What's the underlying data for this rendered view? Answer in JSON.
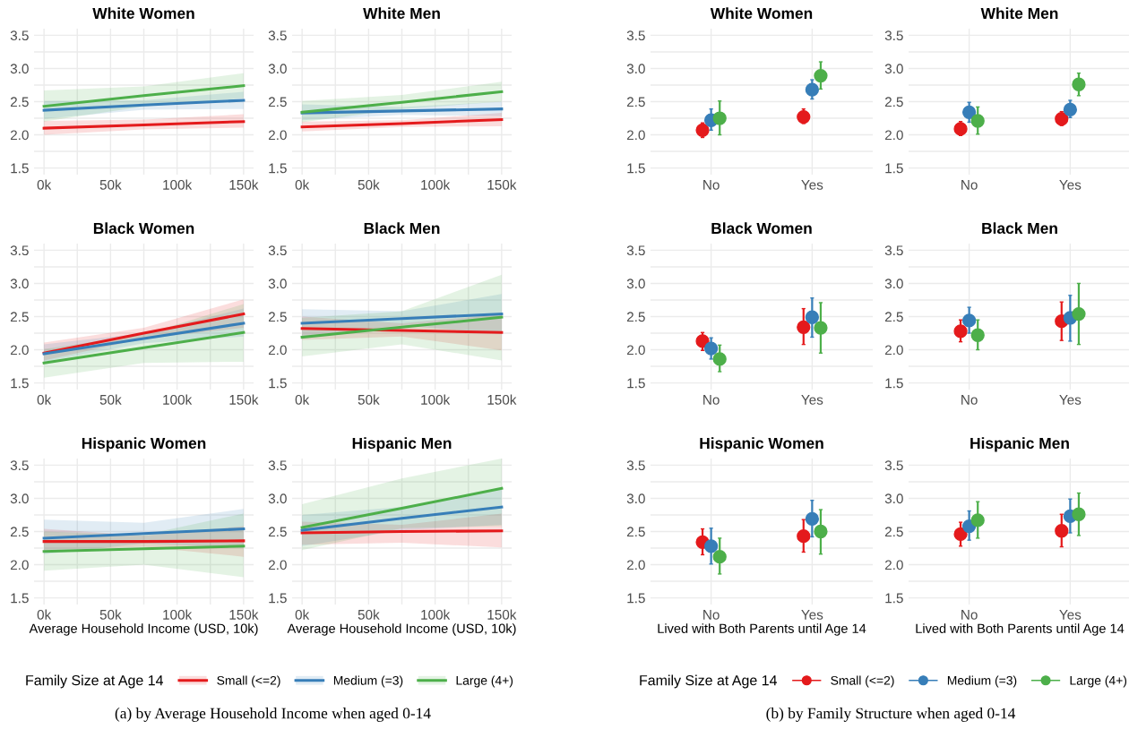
{
  "chart_data": [
    {
      "type": "line",
      "title": "White Women",
      "x": [
        0,
        75000,
        150000
      ],
      "xlim": [
        -7500,
        157500
      ],
      "ylim": [
        1.4,
        3.6
      ],
      "xticks": [
        {
          "value": 0,
          "label": "0k"
        },
        {
          "value": 25000,
          "label": null
        },
        {
          "value": 50000,
          "label": "50k"
        },
        {
          "value": 75000,
          "label": null
        },
        {
          "value": 100000,
          "label": "100k"
        },
        {
          "value": 125000,
          "label": null
        },
        {
          "value": 150000,
          "label": "150k"
        }
      ],
      "yticks": [
        1.5,
        {
          "value": 1.75,
          "label": null
        },
        {
          "value": 2,
          "label": "2.0"
        },
        {
          "value": 2.25,
          "label": null
        },
        2.5,
        {
          "value": 2.75,
          "label": null
        },
        {
          "value": 3,
          "label": "3.0"
        },
        {
          "value": 3.25,
          "label": null
        },
        3.5
      ],
      "grid": true,
      "series": [
        {
          "color": "#e41a1c",
          "values": [
            2.1,
            2.15,
            2.2
          ],
          "lower": [
            2.0,
            2.08,
            2.11
          ],
          "upper": [
            2.21,
            2.23,
            2.31
          ]
        },
        {
          "color": "#377eb8",
          "values": [
            2.37,
            2.45,
            2.52
          ],
          "lower": [
            2.24,
            2.38,
            2.39
          ],
          "upper": [
            2.51,
            2.52,
            2.65
          ]
        },
        {
          "color": "#4daf4a",
          "values": [
            2.43,
            2.59,
            2.74
          ],
          "lower": [
            2.2,
            2.43,
            2.55
          ],
          "upper": [
            2.67,
            2.73,
            2.93
          ]
        }
      ]
    },
    {
      "type": "line",
      "title": "White Men",
      "x": [
        0,
        75000,
        150000
      ],
      "xlim": [
        -7500,
        157500
      ],
      "ylim": [
        1.4,
        3.6
      ],
      "xticks": [
        {
          "value": 0,
          "label": "0k"
        },
        {
          "value": 25000,
          "label": null
        },
        {
          "value": 50000,
          "label": "50k"
        },
        {
          "value": 75000,
          "label": null
        },
        {
          "value": 100000,
          "label": "100k"
        },
        {
          "value": 125000,
          "label": null
        },
        {
          "value": 150000,
          "label": "150k"
        }
      ],
      "yticks": [
        1.5,
        {
          "value": 1.75,
          "label": null
        },
        {
          "value": 2,
          "label": "2.0"
        },
        {
          "value": 2.25,
          "label": null
        },
        2.5,
        {
          "value": 2.75,
          "label": null
        },
        {
          "value": 3,
          "label": "3.0"
        },
        {
          "value": 3.25,
          "label": null
        },
        3.5
      ],
      "grid": true,
      "series": [
        {
          "color": "#e41a1c",
          "values": [
            2.12,
            2.17,
            2.23
          ],
          "lower": [
            2.05,
            2.12,
            2.13
          ],
          "upper": [
            2.2,
            2.22,
            2.33
          ]
        },
        {
          "color": "#377eb8",
          "values": [
            2.33,
            2.36,
            2.39
          ],
          "lower": [
            2.22,
            2.3,
            2.28
          ],
          "upper": [
            2.46,
            2.42,
            2.5
          ]
        },
        {
          "color": "#4daf4a",
          "values": [
            2.34,
            2.49,
            2.65
          ],
          "lower": [
            2.19,
            2.39,
            2.5
          ],
          "upper": [
            2.51,
            2.6,
            2.8
          ]
        }
      ]
    },
    {
      "type": "line",
      "title": "Black Women",
      "x": [
        0,
        75000,
        150000
      ],
      "xlim": [
        -7500,
        157500
      ],
      "ylim": [
        1.4,
        3.6
      ],
      "xticks": [
        {
          "value": 0,
          "label": "0k"
        },
        {
          "value": 25000,
          "label": null
        },
        {
          "value": 50000,
          "label": "50k"
        },
        {
          "value": 75000,
          "label": null
        },
        {
          "value": 100000,
          "label": "100k"
        },
        {
          "value": 125000,
          "label": null
        },
        {
          "value": 150000,
          "label": "150k"
        }
      ],
      "yticks": [
        1.5,
        {
          "value": 1.75,
          "label": null
        },
        {
          "value": 2,
          "label": "2.0"
        },
        {
          "value": 2.25,
          "label": null
        },
        2.5,
        {
          "value": 2.75,
          "label": null
        },
        {
          "value": 3,
          "label": "3.0"
        },
        {
          "value": 3.25,
          "label": null
        },
        3.5
      ],
      "grid": true,
      "series": [
        {
          "color": "#e41a1c",
          "values": [
            1.95,
            2.25,
            2.54
          ],
          "lower": [
            1.84,
            2.17,
            2.33
          ],
          "upper": [
            2.11,
            2.33,
            2.76
          ]
        },
        {
          "color": "#377eb8",
          "values": [
            1.94,
            2.17,
            2.4
          ],
          "lower": [
            1.82,
            2.1,
            2.2
          ],
          "upper": [
            2.08,
            2.25,
            2.62
          ]
        },
        {
          "color": "#4daf4a",
          "values": [
            1.8,
            2.03,
            2.26
          ],
          "lower": [
            1.58,
            1.8,
            1.82
          ],
          "upper": [
            2.01,
            2.23,
            2.69
          ]
        }
      ]
    },
    {
      "type": "line",
      "title": "Black Men",
      "x": [
        0,
        75000,
        150000
      ],
      "xlim": [
        -7500,
        157500
      ],
      "ylim": [
        1.4,
        3.6
      ],
      "xticks": [
        {
          "value": 0,
          "label": "0k"
        },
        {
          "value": 25000,
          "label": null
        },
        {
          "value": 50000,
          "label": "50k"
        },
        {
          "value": 75000,
          "label": null
        },
        {
          "value": 100000,
          "label": "100k"
        },
        {
          "value": 125000,
          "label": null
        },
        {
          "value": 150000,
          "label": "150k"
        }
      ],
      "yticks": [
        1.5,
        {
          "value": 1.75,
          "label": null
        },
        {
          "value": 2,
          "label": "2.0"
        },
        {
          "value": 2.25,
          "label": null
        },
        2.5,
        {
          "value": 2.75,
          "label": null
        },
        {
          "value": 3,
          "label": "3.0"
        },
        {
          "value": 3.25,
          "label": null
        },
        3.5
      ],
      "grid": true,
      "series": [
        {
          "color": "#e41a1c",
          "values": [
            2.32,
            2.29,
            2.26
          ],
          "lower": [
            2.15,
            2.2,
            1.99
          ],
          "upper": [
            2.5,
            2.4,
            2.53
          ]
        },
        {
          "color": "#377eb8",
          "values": [
            2.4,
            2.47,
            2.54
          ],
          "lower": [
            2.2,
            2.37,
            2.24
          ],
          "upper": [
            2.61,
            2.58,
            2.84
          ]
        },
        {
          "color": "#4daf4a",
          "values": [
            2.19,
            2.34,
            2.49
          ],
          "lower": [
            1.9,
            2.08,
            1.84
          ],
          "upper": [
            2.48,
            2.58,
            3.13
          ]
        }
      ]
    },
    {
      "type": "line",
      "title": "Hispanic Women",
      "xlabel": "Average Household Income (USD, 10k)",
      "x": [
        0,
        75000,
        150000
      ],
      "xlim": [
        -7500,
        157500
      ],
      "ylim": [
        1.4,
        3.6
      ],
      "xticks": [
        {
          "value": 0,
          "label": "0k"
        },
        {
          "value": 25000,
          "label": null
        },
        {
          "value": 50000,
          "label": "50k"
        },
        {
          "value": 75000,
          "label": null
        },
        {
          "value": 100000,
          "label": "100k"
        },
        {
          "value": 125000,
          "label": null
        },
        {
          "value": 150000,
          "label": "150k"
        }
      ],
      "yticks": [
        1.5,
        {
          "value": 1.75,
          "label": null
        },
        {
          "value": 2,
          "label": "2.0"
        },
        {
          "value": 2.25,
          "label": null
        },
        2.5,
        {
          "value": 2.75,
          "label": null
        },
        {
          "value": 3,
          "label": "3.0"
        },
        {
          "value": 3.25,
          "label": null
        },
        3.5
      ],
      "grid": true,
      "series": [
        {
          "color": "#e41a1c",
          "values": [
            2.35,
            2.35,
            2.36
          ],
          "lower": [
            2.22,
            2.27,
            2.12
          ],
          "upper": [
            2.54,
            2.44,
            2.58
          ]
        },
        {
          "color": "#377eb8",
          "values": [
            2.4,
            2.47,
            2.54
          ],
          "lower": [
            2.16,
            2.32,
            2.25
          ],
          "upper": [
            2.68,
            2.63,
            2.84
          ]
        },
        {
          "color": "#4daf4a",
          "values": [
            2.2,
            2.24,
            2.28
          ],
          "lower": [
            1.91,
            2.0,
            1.81
          ],
          "upper": [
            2.5,
            2.45,
            2.77
          ]
        }
      ]
    },
    {
      "type": "line",
      "title": "Hispanic Men",
      "xlabel": "Average Household Income (USD, 10k)",
      "x": [
        0,
        75000,
        150000
      ],
      "xlim": [
        -7500,
        157500
      ],
      "ylim": [
        1.4,
        3.6
      ],
      "xticks": [
        {
          "value": 0,
          "label": "0k"
        },
        {
          "value": 25000,
          "label": null
        },
        {
          "value": 50000,
          "label": "50k"
        },
        {
          "value": 75000,
          "label": null
        },
        {
          "value": 100000,
          "label": "100k"
        },
        {
          "value": 125000,
          "label": null
        },
        {
          "value": 150000,
          "label": "150k"
        }
      ],
      "yticks": [
        1.5,
        {
          "value": 1.75,
          "label": null
        },
        {
          "value": 2,
          "label": "2.0"
        },
        {
          "value": 2.25,
          "label": null
        },
        2.5,
        {
          "value": 2.75,
          "label": null
        },
        {
          "value": 3,
          "label": "3.0"
        },
        {
          "value": 3.25,
          "label": null
        },
        3.5
      ],
      "grid": true,
      "legend": "bottom",
      "legend_title": "Family Size at Age 14",
      "annotations": [
        "(a) by Average Household Income when aged 0-14"
      ],
      "series": [
        {
          "name": "Small (<=2)",
          "color": "#e41a1c",
          "values": [
            2.48,
            2.5,
            2.51
          ],
          "lower": [
            2.3,
            2.33,
            2.26
          ],
          "upper": [
            2.65,
            2.6,
            2.77
          ]
        },
        {
          "name": "Medium (=3)",
          "color": "#377eb8",
          "values": [
            2.52,
            2.7,
            2.87
          ],
          "lower": [
            2.28,
            2.52,
            2.6
          ],
          "upper": [
            2.75,
            2.87,
            3.15
          ]
        },
        {
          "name": "Large (4+)",
          "color": "#4daf4a",
          "values": [
            2.56,
            2.85,
            3.15
          ],
          "lower": [
            2.22,
            2.55,
            2.58
          ],
          "upper": [
            2.91,
            3.3,
            3.6
          ]
        }
      ]
    },
    {
      "type": "scatter",
      "title": "White Women",
      "categories": [
        "No",
        "Yes"
      ],
      "ylim": [
        1.4,
        3.6
      ],
      "marker": "circle",
      "yticks": [
        1.5,
        {
          "value": 1.75,
          "label": null
        },
        {
          "value": 2,
          "label": "2.0"
        },
        {
          "value": 2.25,
          "label": null
        },
        2.5,
        {
          "value": 2.75,
          "label": null
        },
        {
          "value": 3,
          "label": "3.0"
        },
        {
          "value": 3.25,
          "label": null
        },
        3.5
      ],
      "grid": true,
      "series": [
        {
          "color": "#e41a1c",
          "values": [
            2.07,
            2.27
          ],
          "errors": [
            [
              1.96,
              2.18
            ],
            [
              2.17,
              2.39
            ]
          ]
        },
        {
          "color": "#377eb8",
          "values": [
            2.22,
            2.68
          ],
          "errors": [
            [
              2.07,
              2.39
            ],
            [
              2.54,
              2.83
            ]
          ]
        },
        {
          "color": "#4daf4a",
          "values": [
            2.25,
            2.89
          ],
          "errors": [
            [
              2.0,
              2.51
            ],
            [
              2.69,
              3.1
            ]
          ]
        }
      ]
    },
    {
      "type": "scatter",
      "title": "White Men",
      "categories": [
        "No",
        "Yes"
      ],
      "ylim": [
        1.4,
        3.6
      ],
      "marker": "circle",
      "yticks": [
        1.5,
        {
          "value": 1.75,
          "label": null
        },
        {
          "value": 2,
          "label": "2.0"
        },
        {
          "value": 2.25,
          "label": null
        },
        2.5,
        {
          "value": 2.75,
          "label": null
        },
        {
          "value": 3,
          "label": "3.0"
        },
        {
          "value": 3.25,
          "label": null
        },
        3.5
      ],
      "grid": true,
      "series": [
        {
          "color": "#e41a1c",
          "values": [
            2.09,
            2.24
          ],
          "errors": [
            [
              1.99,
              2.2
            ],
            [
              2.14,
              2.35
            ]
          ]
        },
        {
          "color": "#377eb8",
          "values": [
            2.34,
            2.38
          ],
          "errors": [
            [
              2.19,
              2.49
            ],
            [
              2.26,
              2.52
            ]
          ]
        },
        {
          "color": "#4daf4a",
          "values": [
            2.21,
            2.76
          ],
          "errors": [
            [
              2.01,
              2.42
            ],
            [
              2.59,
              2.93
            ]
          ]
        }
      ]
    },
    {
      "type": "scatter",
      "title": "Black Women",
      "categories": [
        "No",
        "Yes"
      ],
      "ylim": [
        1.4,
        3.6
      ],
      "marker": "circle",
      "yticks": [
        1.5,
        {
          "value": 1.75,
          "label": null
        },
        {
          "value": 2,
          "label": "2.0"
        },
        {
          "value": 2.25,
          "label": null
        },
        2.5,
        {
          "value": 2.75,
          "label": null
        },
        {
          "value": 3,
          "label": "3.0"
        },
        {
          "value": 3.25,
          "label": null
        },
        3.5
      ],
      "grid": true,
      "series": [
        {
          "color": "#e41a1c",
          "values": [
            2.13,
            2.34
          ],
          "errors": [
            [
              1.99,
              2.26
            ],
            [
              2.08,
              2.62
            ]
          ]
        },
        {
          "color": "#377eb8",
          "values": [
            2.02,
            2.49
          ],
          "errors": [
            [
              1.86,
              2.18
            ],
            [
              2.19,
              2.78
            ]
          ]
        },
        {
          "color": "#4daf4a",
          "values": [
            1.86,
            2.33
          ],
          "errors": [
            [
              1.67,
              2.07
            ],
            [
              1.95,
              2.71
            ]
          ]
        }
      ]
    },
    {
      "type": "scatter",
      "title": "Black Men",
      "categories": [
        "No",
        "Yes"
      ],
      "ylim": [
        1.4,
        3.6
      ],
      "marker": "circle",
      "yticks": [
        1.5,
        {
          "value": 1.75,
          "label": null
        },
        {
          "value": 2,
          "label": "2.0"
        },
        {
          "value": 2.25,
          "label": null
        },
        2.5,
        {
          "value": 2.75,
          "label": null
        },
        {
          "value": 3,
          "label": "3.0"
        },
        {
          "value": 3.25,
          "label": null
        },
        3.5
      ],
      "grid": true,
      "series": [
        {
          "color": "#e41a1c",
          "values": [
            2.28,
            2.43
          ],
          "errors": [
            [
              2.12,
              2.45
            ],
            [
              2.14,
              2.72
            ]
          ]
        },
        {
          "color": "#377eb8",
          "values": [
            2.44,
            2.48
          ],
          "errors": [
            [
              2.25,
              2.64
            ],
            [
              2.13,
              2.82
            ]
          ]
        },
        {
          "color": "#4daf4a",
          "values": [
            2.22,
            2.54
          ],
          "errors": [
            [
              2.0,
              2.45
            ],
            [
              2.08,
              3.0
            ]
          ]
        }
      ]
    },
    {
      "type": "scatter",
      "title": "Hispanic Women",
      "xlabel": "Lived with Both Parents until Age 14",
      "categories": [
        "No",
        "Yes"
      ],
      "ylim": [
        1.4,
        3.6
      ],
      "marker": "circle",
      "yticks": [
        1.5,
        {
          "value": 1.75,
          "label": null
        },
        {
          "value": 2,
          "label": "2.0"
        },
        {
          "value": 2.25,
          "label": null
        },
        2.5,
        {
          "value": 2.75,
          "label": null
        },
        {
          "value": 3,
          "label": "3.0"
        },
        {
          "value": 3.25,
          "label": null
        },
        3.5
      ],
      "grid": true,
      "series": [
        {
          "color": "#e41a1c",
          "values": [
            2.34,
            2.43
          ],
          "errors": [
            [
              2.15,
              2.54
            ],
            [
              2.19,
              2.68
            ]
          ]
        },
        {
          "color": "#377eb8",
          "values": [
            2.28,
            2.69
          ],
          "errors": [
            [
              2.01,
              2.55
            ],
            [
              2.42,
              2.97
            ]
          ]
        },
        {
          "color": "#4daf4a",
          "values": [
            2.12,
            2.5
          ],
          "errors": [
            [
              1.86,
              2.4
            ],
            [
              2.16,
              2.83
            ]
          ]
        }
      ]
    },
    {
      "type": "scatter",
      "title": "Hispanic Men",
      "xlabel": "Lived with Both Parents until Age 14",
      "categories": [
        "No",
        "Yes"
      ],
      "ylim": [
        1.4,
        3.6
      ],
      "marker": "circle",
      "yticks": [
        1.5,
        {
          "value": 1.75,
          "label": null
        },
        {
          "value": 2,
          "label": "2.0"
        },
        {
          "value": 2.25,
          "label": null
        },
        2.5,
        {
          "value": 2.75,
          "label": null
        },
        {
          "value": 3,
          "label": "3.0"
        },
        {
          "value": 3.25,
          "label": null
        },
        3.5
      ],
      "grid": true,
      "legend": "bottom",
      "legend_title": "Family Size at Age 14",
      "annotations": [
        "(b) by Family Structure when aged 0-14"
      ],
      "series": [
        {
          "name": "Small (<=2)",
          "color": "#e41a1c",
          "values": [
            2.46,
            2.51
          ],
          "errors": [
            [
              2.28,
              2.64
            ],
            [
              2.27,
              2.76
            ]
          ]
        },
        {
          "name": "Medium (=3)",
          "color": "#377eb8",
          "values": [
            2.58,
            2.73
          ],
          "errors": [
            [
              2.37,
              2.81
            ],
            [
              2.48,
              2.99
            ]
          ]
        },
        {
          "name": "Large (4+)",
          "color": "#4daf4a",
          "values": [
            2.67,
            2.76
          ],
          "errors": [
            [
              2.4,
              2.95
            ],
            [
              2.44,
              3.08
            ]
          ]
        }
      ]
    }
  ]
}
